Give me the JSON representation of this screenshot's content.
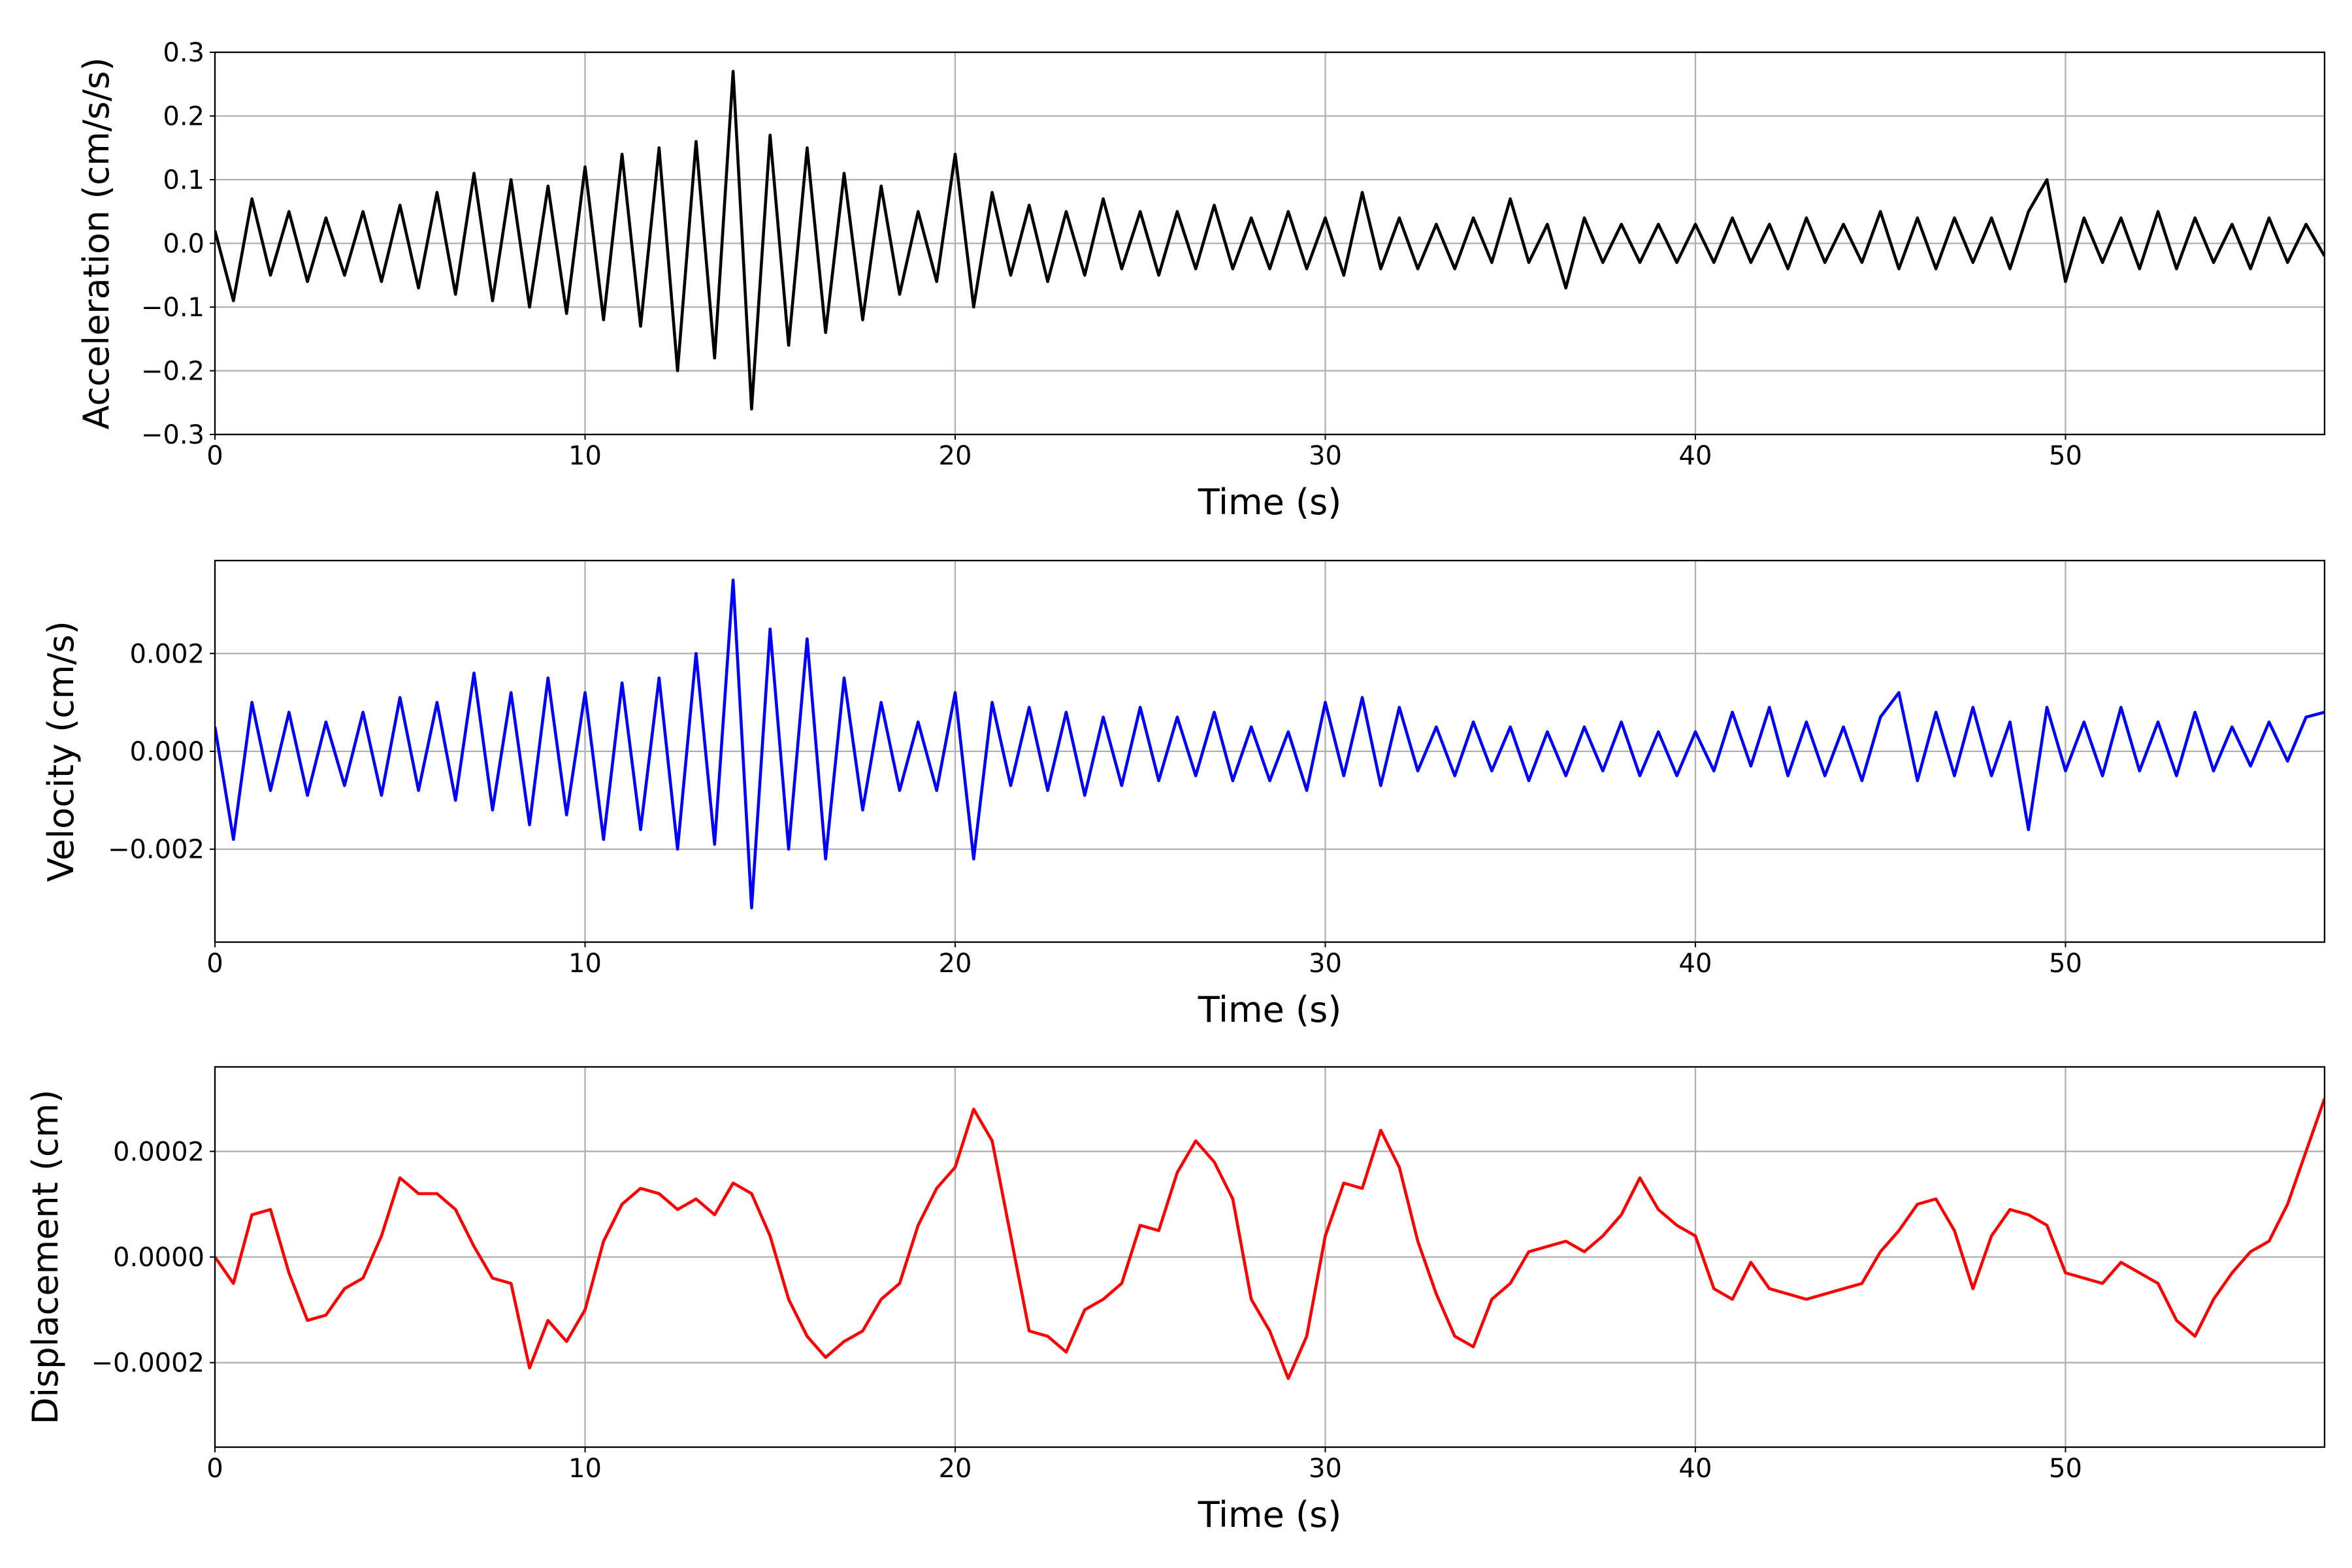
{
  "chart_data": [
    {
      "type": "line",
      "xlabel": "Time (s)",
      "ylabel": "Acceleration (cm/s/s)",
      "xlim": [
        0,
        57
      ],
      "xticks": [
        0,
        10,
        20,
        30,
        40,
        50
      ],
      "ylim": [
        -0.3,
        0.3
      ],
      "yticks": [
        {
          "value": -0.3,
          "label": "−0.3"
        },
        {
          "value": -0.2,
          "label": "−0.2"
        },
        {
          "value": -0.1,
          "label": "−0.1"
        },
        {
          "value": 0,
          "label": "0.0"
        },
        {
          "value": 0.1,
          "label": "0.1"
        },
        {
          "value": 0.2,
          "label": "0.2"
        },
        {
          "value": 0.3,
          "label": "0.3"
        }
      ],
      "grid": true,
      "x": [
        0,
        0.5,
        1,
        1.5,
        2,
        2.5,
        3,
        3.5,
        4,
        4.5,
        5,
        5.5,
        6,
        6.5,
        7,
        7.5,
        8,
        8.5,
        9,
        9.5,
        10,
        10.5,
        11,
        11.5,
        12,
        12.5,
        13,
        13.5,
        14,
        14.5,
        15,
        15.5,
        16,
        16.5,
        17,
        17.5,
        18,
        18.5,
        19,
        19.5,
        20,
        20.5,
        21,
        21.5,
        22,
        22.5,
        23,
        23.5,
        24,
        24.5,
        25,
        25.5,
        26,
        26.5,
        27,
        27.5,
        28,
        28.5,
        29,
        29.5,
        30,
        30.5,
        31,
        31.5,
        32,
        32.5,
        33,
        33.5,
        34,
        34.5,
        35,
        35.5,
        36,
        36.5,
        37,
        37.5,
        38,
        38.5,
        39,
        39.5,
        40,
        40.5,
        41,
        41.5,
        42,
        42.5,
        43,
        43.5,
        44,
        44.5,
        45,
        45.5,
        46,
        46.5,
        47,
        47.5,
        48,
        48.5,
        49,
        49.5,
        50,
        50.5,
        51,
        51.5,
        52,
        52.5,
        53,
        53.5,
        54,
        54.5,
        55,
        55.5,
        56,
        56.5,
        57
      ],
      "series": [
        {
          "color": "#000000",
          "values": [
            0.02,
            -0.09,
            0.07,
            -0.05,
            0.05,
            -0.06,
            0.04,
            -0.05,
            0.05,
            -0.06,
            0.06,
            -0.07,
            0.08,
            -0.08,
            0.11,
            -0.09,
            0.1,
            -0.1,
            0.09,
            -0.11,
            0.12,
            -0.12,
            0.14,
            -0.13,
            0.15,
            -0.2,
            0.16,
            -0.18,
            0.27,
            -0.26,
            0.17,
            -0.16,
            0.15,
            -0.14,
            0.11,
            -0.12,
            0.09,
            -0.08,
            0.05,
            -0.06,
            0.14,
            -0.1,
            0.08,
            -0.05,
            0.06,
            -0.06,
            0.05,
            -0.05,
            0.07,
            -0.04,
            0.05,
            -0.05,
            0.05,
            -0.04,
            0.06,
            -0.04,
            0.04,
            -0.04,
            0.05,
            -0.04,
            0.04,
            -0.05,
            0.08,
            -0.04,
            0.04,
            -0.04,
            0.03,
            -0.04,
            0.04,
            -0.03,
            0.07,
            -0.03,
            0.03,
            -0.07,
            0.04,
            -0.03,
            0.03,
            -0.03,
            0.03,
            -0.03,
            0.03,
            -0.03,
            0.04,
            -0.03,
            0.03,
            -0.04,
            0.04,
            -0.03,
            0.03,
            -0.03,
            0.05,
            -0.04,
            0.04,
            -0.04,
            0.04,
            -0.03,
            0.04,
            -0.04,
            0.05,
            0.1,
            -0.06,
            0.04,
            -0.03,
            0.04,
            -0.04,
            0.05,
            -0.04,
            0.04,
            -0.03,
            0.03,
            -0.04,
            0.04,
            -0.03,
            0.03,
            -0.02
          ]
        }
      ]
    },
    {
      "type": "line",
      "xlabel": "Time (s)",
      "ylabel": "Velocity (cm/s)",
      "xlim": [
        0,
        57
      ],
      "xticks": [
        0,
        10,
        20,
        30,
        40,
        50
      ],
      "ylim": [
        -0.0039,
        0.0039
      ],
      "yticks": [
        {
          "value": -0.002,
          "label": "−0.002"
        },
        {
          "value": 0,
          "label": "0.000"
        },
        {
          "value": 0.002,
          "label": "0.002"
        }
      ],
      "grid": true,
      "x": [
        0,
        0.5,
        1,
        1.5,
        2,
        2.5,
        3,
        3.5,
        4,
        4.5,
        5,
        5.5,
        6,
        6.5,
        7,
        7.5,
        8,
        8.5,
        9,
        9.5,
        10,
        10.5,
        11,
        11.5,
        12,
        12.5,
        13,
        13.5,
        14,
        14.5,
        15,
        15.5,
        16,
        16.5,
        17,
        17.5,
        18,
        18.5,
        19,
        19.5,
        20,
        20.5,
        21,
        21.5,
        22,
        22.5,
        23,
        23.5,
        24,
        24.5,
        25,
        25.5,
        26,
        26.5,
        27,
        27.5,
        28,
        28.5,
        29,
        29.5,
        30,
        30.5,
        31,
        31.5,
        32,
        32.5,
        33,
        33.5,
        34,
        34.5,
        35,
        35.5,
        36,
        36.5,
        37,
        37.5,
        38,
        38.5,
        39,
        39.5,
        40,
        40.5,
        41,
        41.5,
        42,
        42.5,
        43,
        43.5,
        44,
        44.5,
        45,
        45.5,
        46,
        46.5,
        47,
        47.5,
        48,
        48.5,
        49,
        49.5,
        50,
        50.5,
        51,
        51.5,
        52,
        52.5,
        53,
        53.5,
        54,
        54.5,
        55,
        55.5,
        56,
        56.5,
        57
      ],
      "series": [
        {
          "color": "#0000ff",
          "values": [
            0.0005,
            -0.0018,
            0.001,
            -0.0008,
            0.0008,
            -0.0009,
            0.0006,
            -0.0007,
            0.0008,
            -0.0009,
            0.0011,
            -0.0008,
            0.001,
            -0.001,
            0.0016,
            -0.0012,
            0.0012,
            -0.0015,
            0.0015,
            -0.0013,
            0.0012,
            -0.0018,
            0.0014,
            -0.0016,
            0.0015,
            -0.002,
            0.002,
            -0.0019,
            0.0035,
            -0.0032,
            0.0025,
            -0.002,
            0.0023,
            -0.0022,
            0.0015,
            -0.0012,
            0.001,
            -0.0008,
            0.0006,
            -0.0008,
            0.0012,
            -0.0022,
            0.001,
            -0.0007,
            0.0009,
            -0.0008,
            0.0008,
            -0.0009,
            0.0007,
            -0.0007,
            0.0009,
            -0.0006,
            0.0007,
            -0.0005,
            0.0008,
            -0.0006,
            0.0005,
            -0.0006,
            0.0004,
            -0.0008,
            0.001,
            -0.0005,
            0.0011,
            -0.0007,
            0.0009,
            -0.0004,
            0.0005,
            -0.0005,
            0.0006,
            -0.0004,
            0.0005,
            -0.0006,
            0.0004,
            -0.0005,
            0.0005,
            -0.0004,
            0.0006,
            -0.0005,
            0.0004,
            -0.0005,
            0.0004,
            -0.0004,
            0.0008,
            -0.0003,
            0.0009,
            -0.0005,
            0.0006,
            -0.0005,
            0.0005,
            -0.0006,
            0.0007,
            0.0012,
            -0.0006,
            0.0008,
            -0.0005,
            0.0009,
            -0.0005,
            0.0006,
            -0.0016,
            0.0009,
            -0.0004,
            0.0006,
            -0.0005,
            0.0009,
            -0.0004,
            0.0006,
            -0.0005,
            0.0008,
            -0.0004,
            0.0005,
            -0.0003,
            0.0006,
            -0.0002,
            0.0007,
            0.0008
          ]
        }
      ]
    },
    {
      "type": "line",
      "xlabel": "Time (s)",
      "ylabel": "Displacement (cm)",
      "xlim": [
        0,
        57
      ],
      "xticks": [
        0,
        10,
        20,
        30,
        40,
        50
      ],
      "ylim": [
        -0.00036,
        0.00036
      ],
      "yticks": [
        {
          "value": -0.0002,
          "label": "−0.0002"
        },
        {
          "value": 0,
          "label": "0.0000"
        },
        {
          "value": 0.0002,
          "label": "0.0002"
        }
      ],
      "grid": true,
      "x": [
        0,
        0.5,
        1,
        1.5,
        2,
        2.5,
        3,
        3.5,
        4,
        4.5,
        5,
        5.5,
        6,
        6.5,
        7,
        7.5,
        8,
        8.5,
        9,
        9.5,
        10,
        10.5,
        11,
        11.5,
        12,
        12.5,
        13,
        13.5,
        14,
        14.5,
        15,
        15.5,
        16,
        16.5,
        17,
        17.5,
        18,
        18.5,
        19,
        19.5,
        20,
        20.5,
        21,
        21.5,
        22,
        22.5,
        23,
        23.5,
        24,
        24.5,
        25,
        25.5,
        26,
        26.5,
        27,
        27.5,
        28,
        28.5,
        29,
        29.5,
        30,
        30.5,
        31,
        31.5,
        32,
        32.5,
        33,
        33.5,
        34,
        34.5,
        35,
        35.5,
        36,
        36.5,
        37,
        37.5,
        38,
        38.5,
        39,
        39.5,
        40,
        40.5,
        41,
        41.5,
        42,
        42.5,
        43,
        43.5,
        44,
        44.5,
        45,
        45.5,
        46,
        46.5,
        47,
        47.5,
        48,
        48.5,
        49,
        49.5,
        50,
        50.5,
        51,
        51.5,
        52,
        52.5,
        53,
        53.5,
        54,
        54.5,
        55,
        55.5,
        56,
        56.5,
        57
      ],
      "series": [
        {
          "color": "#ff0000",
          "values": [
            0,
            -5e-05,
            8e-05,
            9e-05,
            -3e-05,
            -0.00012,
            -0.00011,
            -6e-05,
            -4e-05,
            4e-05,
            0.00015,
            0.00012,
            0.00012,
            9e-05,
            2e-05,
            -4e-05,
            -5e-05,
            -0.00021,
            -0.00012,
            -0.00016,
            -0.0001,
            3e-05,
            0.0001,
            0.00013,
            0.00012,
            9e-05,
            0.00011,
            8e-05,
            0.00014,
            0.00012,
            4e-05,
            -8e-05,
            -0.00015,
            -0.00019,
            -0.00016,
            -0.00014,
            -8e-05,
            -5e-05,
            6e-05,
            0.00013,
            0.00017,
            0.00028,
            0.00022,
            4e-05,
            -0.00014,
            -0.00015,
            -0.00018,
            -0.0001,
            -8e-05,
            -5e-05,
            6e-05,
            5e-05,
            0.00016,
            0.00022,
            0.00018,
            0.00011,
            -8e-05,
            -0.00014,
            -0.00023,
            -0.00015,
            4e-05,
            0.00014,
            0.00013,
            0.00024,
            0.00017,
            3e-05,
            -7e-05,
            -0.00015,
            -0.00017,
            -8e-05,
            -5e-05,
            1e-05,
            2e-05,
            3e-05,
            1e-05,
            4e-05,
            8e-05,
            0.00015,
            9e-05,
            6e-05,
            4e-05,
            -6e-05,
            -8e-05,
            -1e-05,
            -6e-05,
            -7e-05,
            -8e-05,
            -7e-05,
            -6e-05,
            -5e-05,
            1e-05,
            5e-05,
            0.0001,
            0.00011,
            5e-05,
            -6e-05,
            4e-05,
            9e-05,
            8e-05,
            6e-05,
            -3e-05,
            -4e-05,
            -5e-05,
            -1e-05,
            -3e-05,
            -5e-05,
            -0.00012,
            -0.00015,
            -8e-05,
            -3e-05,
            1e-05,
            3e-05,
            0.0001,
            0.0002,
            0.0003
          ]
        }
      ]
    }
  ]
}
